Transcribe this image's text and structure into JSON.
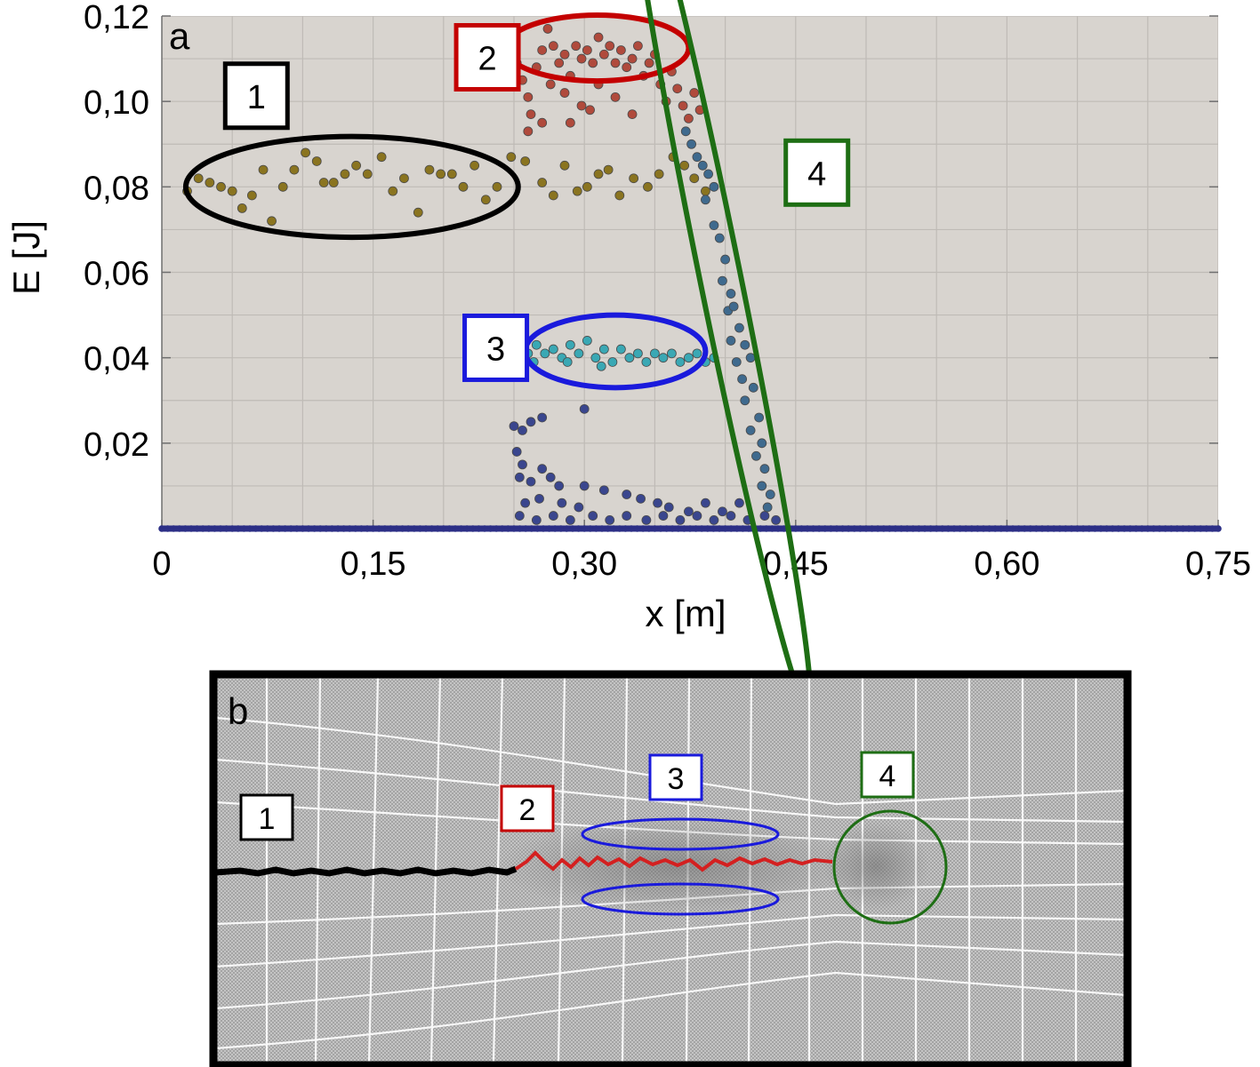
{
  "chart_data": {
    "type": "scatter",
    "panel_label": "a",
    "xlabel": "x [m]",
    "ylabel": "E [J]",
    "xlim": [
      0,
      0.75
    ],
    "ylim": [
      0,
      0.12
    ],
    "x_ticks": [
      0,
      0.15,
      0.3,
      0.45,
      0.6,
      0.75
    ],
    "x_tick_labels": [
      "0",
      "0,15",
      "0,30",
      "0,45",
      "0,60",
      "0,75"
    ],
    "y_ticks": [
      0.02,
      0.04,
      0.06,
      0.08,
      0.1,
      0.12
    ],
    "y_tick_labels": [
      "0,02",
      "0,04",
      "0,06",
      "0,08",
      "0,10",
      "0,12"
    ],
    "grid": true,
    "plot_background": "#d8d4cf",
    "colors": {
      "region1": "#000000",
      "region2": "#c40000",
      "region3": "#1a1adc",
      "region4": "#1e6e14",
      "baseline": "#2c2f86"
    },
    "annotations": [
      {
        "label": "1",
        "color": "#000000",
        "ellipse_center": [
          0.135,
          0.08
        ],
        "ellipse_rx": 0.118,
        "ellipse_ry": 0.0118,
        "ellipse_rotation": 0,
        "label_position": [
          0.045,
          0.1005
        ]
      },
      {
        "label": "2",
        "color": "#c40000",
        "ellipse_center": [
          0.309,
          0.1125
        ],
        "ellipse_rx": 0.065,
        "ellipse_ry": 0.0077,
        "ellipse_rotation": 0,
        "label_position": [
          0.209,
          0.1095
        ]
      },
      {
        "label": "3",
        "color": "#1a1adc",
        "ellipse_center": [
          0.322,
          0.0415
        ],
        "ellipse_rx": 0.064,
        "ellipse_ry": 0.0085,
        "ellipse_rotation": 0,
        "label_position": [
          0.215,
          0.0415
        ]
      },
      {
        "label": "4",
        "color": "#1e6e14",
        "ellipse_center": [
          0.396,
          0.0595
        ],
        "ellipse_rx": 0.0145,
        "ellipse_ry": 0.1043,
        "ellipse_rotation": -11.5,
        "label_position": [
          0.443,
          0.0825
        ]
      }
    ],
    "series": [
      {
        "points": [
          [
            0.018,
            0.079
          ],
          [
            0.026,
            0.082
          ],
          [
            0.034,
            0.081
          ],
          [
            0.042,
            0.08
          ],
          [
            0.05,
            0.079
          ],
          [
            0.057,
            0.075
          ],
          [
            0.064,
            0.078
          ],
          [
            0.072,
            0.084
          ],
          [
            0.078,
            0.072
          ],
          [
            0.086,
            0.08
          ],
          [
            0.094,
            0.084
          ],
          [
            0.102,
            0.088
          ],
          [
            0.11,
            0.086
          ],
          [
            0.115,
            0.081
          ],
          [
            0.122,
            0.081
          ],
          [
            0.13,
            0.083
          ],
          [
            0.138,
            0.085
          ],
          [
            0.146,
            0.083
          ],
          [
            0.156,
            0.087
          ],
          [
            0.164,
            0.079
          ],
          [
            0.172,
            0.082
          ],
          [
            0.182,
            0.074
          ],
          [
            0.19,
            0.084
          ],
          [
            0.198,
            0.083
          ],
          [
            0.206,
            0.083
          ],
          [
            0.214,
            0.08
          ],
          [
            0.222,
            0.085
          ],
          [
            0.23,
            0.077
          ],
          [
            0.238,
            0.08
          ]
        ],
        "color": "#8a7420"
      },
      {
        "points": [
          [
            0.248,
            0.087
          ],
          [
            0.258,
            0.086
          ],
          [
            0.27,
            0.081
          ],
          [
            0.278,
            0.078
          ],
          [
            0.286,
            0.085
          ],
          [
            0.295,
            0.079
          ],
          [
            0.302,
            0.08
          ],
          [
            0.31,
            0.083
          ],
          [
            0.317,
            0.084
          ],
          [
            0.325,
            0.078
          ],
          [
            0.335,
            0.082
          ],
          [
            0.345,
            0.08
          ],
          [
            0.353,
            0.083
          ],
          [
            0.363,
            0.087
          ],
          [
            0.371,
            0.085
          ],
          [
            0.378,
            0.082
          ],
          [
            0.386,
            0.079
          ]
        ],
        "color": "#8a7420"
      },
      {
        "points": [
          [
            0.252,
            0.109
          ],
          [
            0.256,
            0.105
          ],
          [
            0.26,
            0.101
          ],
          [
            0.262,
            0.097
          ],
          [
            0.266,
            0.108
          ],
          [
            0.27,
            0.112
          ],
          [
            0.274,
            0.117
          ],
          [
            0.278,
            0.113
          ],
          [
            0.282,
            0.109
          ],
          [
            0.286,
            0.111
          ],
          [
            0.29,
            0.106
          ],
          [
            0.294,
            0.113
          ],
          [
            0.298,
            0.11
          ],
          [
            0.302,
            0.112
          ],
          [
            0.306,
            0.109
          ],
          [
            0.31,
            0.115
          ],
          [
            0.314,
            0.111
          ],
          [
            0.318,
            0.113
          ],
          [
            0.322,
            0.109
          ],
          [
            0.326,
            0.112
          ],
          [
            0.33,
            0.108
          ],
          [
            0.334,
            0.11
          ],
          [
            0.338,
            0.113
          ],
          [
            0.342,
            0.106
          ],
          [
            0.346,
            0.109
          ],
          [
            0.35,
            0.111
          ],
          [
            0.354,
            0.104
          ],
          [
            0.358,
            0.1
          ],
          [
            0.362,
            0.107
          ],
          [
            0.366,
            0.103
          ],
          [
            0.37,
            0.099
          ],
          [
            0.374,
            0.096
          ],
          [
            0.378,
            0.102
          ],
          [
            0.382,
            0.098
          ],
          [
            0.286,
            0.102
          ],
          [
            0.298,
            0.099
          ],
          [
            0.31,
            0.104
          ],
          [
            0.322,
            0.101
          ],
          [
            0.334,
            0.097
          ],
          [
            0.26,
            0.093
          ],
          [
            0.27,
            0.095
          ],
          [
            0.276,
            0.104
          ],
          [
            0.29,
            0.095
          ],
          [
            0.304,
            0.098
          ]
        ],
        "color": "#b04a3c"
      },
      {
        "points": [
          [
            0.372,
            0.093
          ],
          [
            0.376,
            0.09
          ],
          [
            0.38,
            0.087
          ],
          [
            0.384,
            0.085
          ],
          [
            0.388,
            0.083
          ],
          [
            0.392,
            0.08
          ],
          [
            0.386,
            0.077
          ],
          [
            0.392,
            0.071
          ],
          [
            0.396,
            0.068
          ],
          [
            0.4,
            0.063
          ],
          [
            0.398,
            0.058
          ],
          [
            0.404,
            0.055
          ],
          [
            0.402,
            0.051
          ],
          [
            0.406,
            0.052
          ],
          [
            0.41,
            0.047
          ],
          [
            0.404,
            0.044
          ],
          [
            0.414,
            0.043
          ],
          [
            0.408,
            0.039
          ],
          [
            0.418,
            0.04
          ],
          [
            0.412,
            0.035
          ],
          [
            0.42,
            0.033
          ],
          [
            0.414,
            0.03
          ],
          [
            0.424,
            0.026
          ],
          [
            0.418,
            0.023
          ],
          [
            0.426,
            0.02
          ],
          [
            0.422,
            0.017
          ],
          [
            0.428,
            0.014
          ],
          [
            0.426,
            0.01
          ],
          [
            0.432,
            0.008
          ],
          [
            0.43,
            0.005
          ]
        ],
        "color": "#3f6a8e"
      },
      {
        "points": [
          [
            0.254,
            0.042
          ],
          [
            0.26,
            0.041
          ],
          [
            0.266,
            0.043
          ],
          [
            0.272,
            0.041
          ],
          [
            0.278,
            0.042
          ],
          [
            0.284,
            0.04
          ],
          [
            0.29,
            0.043
          ],
          [
            0.296,
            0.041
          ],
          [
            0.302,
            0.044
          ],
          [
            0.308,
            0.04
          ],
          [
            0.314,
            0.042
          ],
          [
            0.32,
            0.039
          ],
          [
            0.326,
            0.042
          ],
          [
            0.332,
            0.04
          ],
          [
            0.338,
            0.041
          ],
          [
            0.344,
            0.039
          ],
          [
            0.35,
            0.041
          ],
          [
            0.356,
            0.04
          ],
          [
            0.362,
            0.041
          ],
          [
            0.368,
            0.039
          ],
          [
            0.374,
            0.04
          ],
          [
            0.38,
            0.041
          ],
          [
            0.386,
            0.039
          ],
          [
            0.392,
            0.04
          ],
          [
            0.264,
            0.039
          ],
          [
            0.288,
            0.039
          ],
          [
            0.312,
            0.038
          ]
        ],
        "color": "#3aa8b4"
      },
      {
        "points": [
          [
            0.25,
            0.024
          ],
          [
            0.256,
            0.023
          ],
          [
            0.262,
            0.025
          ],
          [
            0.27,
            0.026
          ],
          [
            0.3,
            0.028
          ],
          [
            0.252,
            0.018
          ],
          [
            0.256,
            0.015
          ],
          [
            0.254,
            0.012
          ],
          [
            0.262,
            0.011
          ],
          [
            0.27,
            0.014
          ],
          [
            0.276,
            0.012
          ],
          [
            0.282,
            0.01
          ],
          [
            0.3,
            0.01
          ],
          [
            0.314,
            0.009
          ],
          [
            0.33,
            0.008
          ],
          [
            0.258,
            0.006
          ],
          [
            0.268,
            0.007
          ],
          [
            0.284,
            0.006
          ],
          [
            0.296,
            0.005
          ],
          [
            0.34,
            0.007
          ],
          [
            0.352,
            0.006
          ],
          [
            0.36,
            0.005
          ],
          [
            0.374,
            0.004
          ],
          [
            0.386,
            0.006
          ],
          [
            0.398,
            0.004
          ],
          [
            0.41,
            0.006
          ],
          [
            0.254,
            0.003
          ],
          [
            0.266,
            0.002
          ],
          [
            0.278,
            0.003
          ],
          [
            0.29,
            0.002
          ],
          [
            0.306,
            0.003
          ],
          [
            0.318,
            0.002
          ],
          [
            0.33,
            0.003
          ],
          [
            0.344,
            0.002
          ],
          [
            0.356,
            0.003
          ],
          [
            0.368,
            0.002
          ],
          [
            0.38,
            0.003
          ],
          [
            0.392,
            0.002
          ],
          [
            0.404,
            0.003
          ],
          [
            0.416,
            0.002
          ],
          [
            0.428,
            0.003
          ],
          [
            0.436,
            0.002
          ]
        ],
        "color": "#3a468e"
      }
    ],
    "baseline_series": {
      "y": 0.0,
      "x_range": [
        0,
        0.75
      ],
      "color": "#2c2f86"
    }
  },
  "panel_b": {
    "panel_label": "b",
    "annotations": [
      {
        "label": "1",
        "color": "#000000"
      },
      {
        "label": "2",
        "color": "#c40000"
      },
      {
        "label": "3",
        "color": "#1a1adc"
      },
      {
        "label": "4",
        "color": "#1e6e14"
      }
    ]
  }
}
